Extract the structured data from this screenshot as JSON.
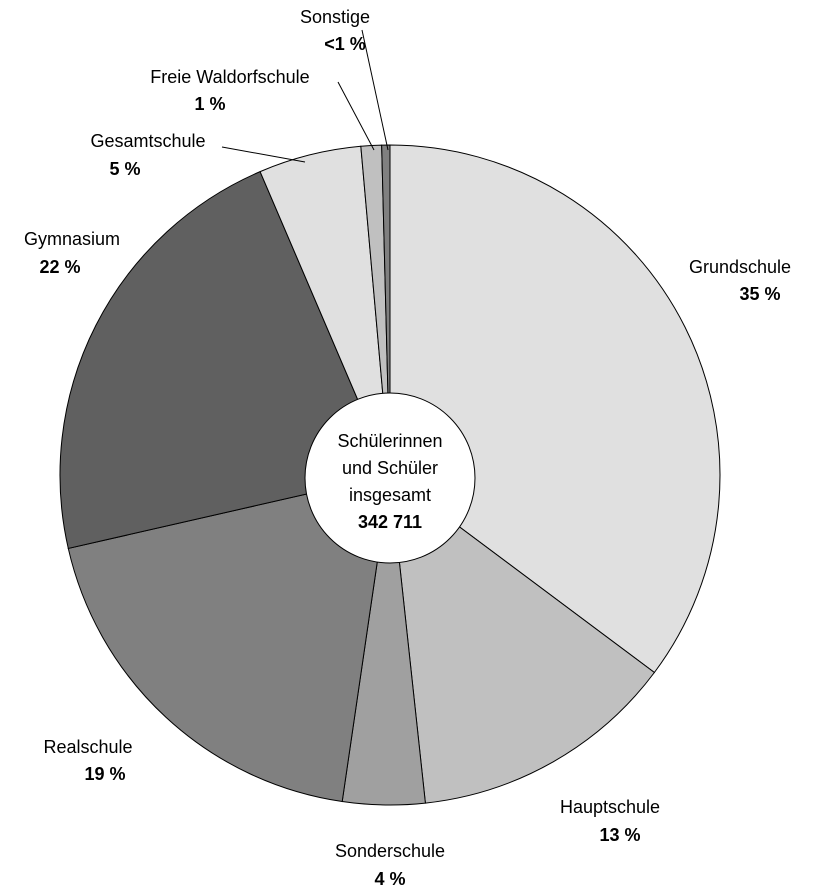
{
  "chart_data": {
    "type": "pie",
    "categories": [
      "Grundschule",
      "Hauptschule",
      "Sonderschule",
      "Realschule",
      "Gymnasium",
      "Gesamtschule",
      "Freie Waldorfschule",
      "Sonstige"
    ],
    "values": [
      35,
      13,
      4,
      19,
      22,
      5,
      1,
      0.4
    ],
    "value_labels": [
      "35 %",
      "13 %",
      "4 %",
      "19 %",
      "22 %",
      "5 %",
      "1 %",
      "<1 %"
    ],
    "colors": [
      "#e0e0e0",
      "#c0c0c0",
      "#a0a0a0",
      "#808080",
      "#606060",
      "#e0e0e0",
      "#c0c0c0",
      "#808080"
    ],
    "center_text": [
      "Schülerinnen",
      "und Schüler",
      "insgesamt"
    ],
    "center_value": "342 711"
  }
}
